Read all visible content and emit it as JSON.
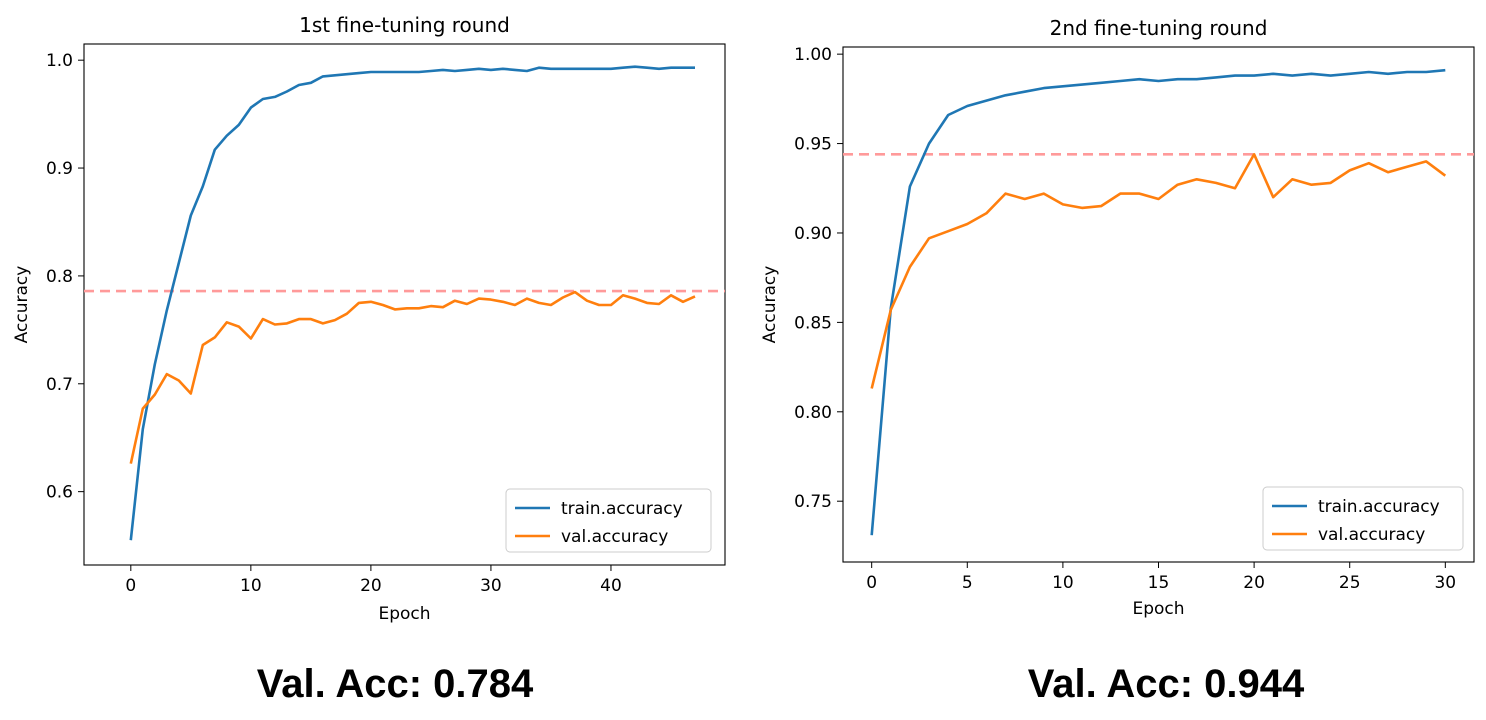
{
  "chart_data": [
    {
      "type": "line",
      "title": "1st fine-tuning round",
      "xlabel": "Epoch",
      "ylabel": "Accuracy",
      "xlim": [
        -3.9,
        49.5
      ],
      "ylim": [
        0.532,
        1.015
      ],
      "xticks": [
        0,
        10,
        20,
        30,
        40
      ],
      "yticks": [
        0.6,
        0.7,
        0.8,
        0.9,
        1.0
      ],
      "ytick_labels": [
        "0.6",
        "0.7",
        "0.8",
        "0.9",
        "1.0"
      ],
      "grid": false,
      "legend": "lower-right",
      "hline": {
        "y": 0.786,
        "color": "#ff9a9a",
        "style": "dashed"
      },
      "series": [
        {
          "name": "train.accuracy",
          "color": "#1f77b4",
          "x": [
            0,
            1,
            2,
            3,
            4,
            5,
            6,
            7,
            8,
            9,
            10,
            11,
            12,
            13,
            14,
            15,
            16,
            17,
            18,
            19,
            20,
            21,
            22,
            23,
            24,
            25,
            26,
            27,
            28,
            29,
            30,
            31,
            32,
            33,
            34,
            35,
            36,
            37,
            38,
            39,
            40,
            41,
            42,
            43,
            44,
            45,
            46,
            47
          ],
          "values": [
            0.555,
            0.658,
            0.718,
            0.768,
            0.812,
            0.856,
            0.883,
            0.917,
            0.93,
            0.94,
            0.956,
            0.964,
            0.966,
            0.971,
            0.977,
            0.979,
            0.985,
            0.986,
            0.987,
            0.988,
            0.989,
            0.989,
            0.989,
            0.989,
            0.989,
            0.99,
            0.991,
            0.99,
            0.991,
            0.992,
            0.991,
            0.992,
            0.991,
            0.99,
            0.993,
            0.992,
            0.992,
            0.992,
            0.992,
            0.992,
            0.992,
            0.993,
            0.994,
            0.993,
            0.992,
            0.993,
            0.993,
            0.993
          ]
        },
        {
          "name": "val.accuracy",
          "color": "#ff7f0e",
          "x": [
            0,
            1,
            2,
            3,
            4,
            5,
            6,
            7,
            8,
            9,
            10,
            11,
            12,
            13,
            14,
            15,
            16,
            17,
            18,
            19,
            20,
            21,
            22,
            23,
            24,
            25,
            26,
            27,
            28,
            29,
            30,
            31,
            32,
            33,
            34,
            35,
            36,
            37,
            38,
            39,
            40,
            41,
            42,
            43,
            44,
            45,
            46,
            47
          ],
          "values": [
            0.626,
            0.677,
            0.69,
            0.709,
            0.703,
            0.691,
            0.736,
            0.743,
            0.757,
            0.753,
            0.742,
            0.76,
            0.755,
            0.756,
            0.76,
            0.76,
            0.756,
            0.759,
            0.765,
            0.775,
            0.776,
            0.773,
            0.769,
            0.77,
            0.77,
            0.772,
            0.771,
            0.777,
            0.774,
            0.779,
            0.778,
            0.776,
            0.773,
            0.779,
            0.775,
            0.773,
            0.78,
            0.785,
            0.777,
            0.773,
            0.773,
            0.782,
            0.779,
            0.775,
            0.774,
            0.782,
            0.776,
            0.781
          ]
        }
      ]
    },
    {
      "type": "line",
      "title": "2nd fine-tuning round",
      "xlabel": "Epoch",
      "ylabel": "Accuracy",
      "xlim": [
        -1.5,
        31.5
      ],
      "ylim": [
        0.716,
        1.004
      ],
      "xticks": [
        0,
        5,
        10,
        15,
        20,
        25,
        30
      ],
      "yticks": [
        0.75,
        0.8,
        0.85,
        0.9,
        0.95,
        1.0
      ],
      "ytick_labels": [
        "0.75",
        "0.80",
        "0.85",
        "0.90",
        "0.95",
        "1.00"
      ],
      "grid": false,
      "legend": "lower-right",
      "hline": {
        "y": 0.944,
        "color": "#ff9a9a",
        "style": "dashed"
      },
      "series": [
        {
          "name": "train.accuracy",
          "color": "#1f77b4",
          "x": [
            0,
            1,
            2,
            3,
            4,
            5,
            6,
            7,
            8,
            9,
            10,
            11,
            12,
            13,
            14,
            15,
            16,
            17,
            18,
            19,
            20,
            21,
            22,
            23,
            24,
            25,
            26,
            27,
            28,
            29,
            30
          ],
          "values": [
            0.731,
            0.858,
            0.926,
            0.95,
            0.966,
            0.971,
            0.974,
            0.977,
            0.979,
            0.981,
            0.982,
            0.983,
            0.984,
            0.985,
            0.986,
            0.985,
            0.986,
            0.986,
            0.987,
            0.988,
            0.988,
            0.989,
            0.988,
            0.989,
            0.988,
            0.989,
            0.99,
            0.989,
            0.99,
            0.99,
            0.991
          ]
        },
        {
          "name": "val.accuracy",
          "color": "#ff7f0e",
          "x": [
            0,
            1,
            2,
            3,
            4,
            5,
            6,
            7,
            8,
            9,
            10,
            11,
            12,
            13,
            14,
            15,
            16,
            17,
            18,
            19,
            20,
            21,
            22,
            23,
            24,
            25,
            26,
            27,
            28,
            29,
            30
          ],
          "values": [
            0.813,
            0.857,
            0.881,
            0.897,
            0.901,
            0.905,
            0.911,
            0.922,
            0.919,
            0.922,
            0.916,
            0.914,
            0.915,
            0.922,
            0.922,
            0.919,
            0.927,
            0.93,
            0.928,
            0.925,
            0.944,
            0.92,
            0.93,
            0.927,
            0.928,
            0.935,
            0.939,
            0.934,
            0.937,
            0.94,
            0.932
          ]
        }
      ]
    }
  ],
  "captions": {
    "left": "Val. Acc: 0.784",
    "right": "Val. Acc: 0.944"
  }
}
